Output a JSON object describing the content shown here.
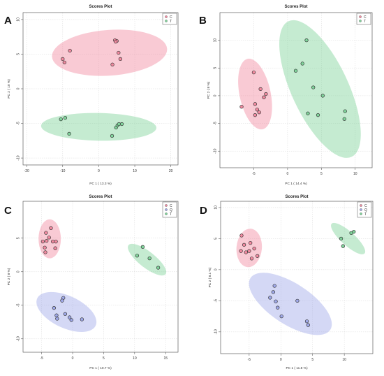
{
  "chart_data": [
    {
      "type": "scatter",
      "panel_label": "A",
      "title": "Scores Plot",
      "xlabel": "PC 1 ( 13.3 %)",
      "ylabel": "PC 2 ( 10 %)",
      "xlim": [
        -21,
        22
      ],
      "ylim": [
        -11,
        11
      ],
      "xticks": [
        -20,
        -10,
        0,
        10,
        20
      ],
      "yticks": [
        -10,
        -5,
        0,
        5,
        10
      ],
      "grid": true,
      "legend_position": "top-right",
      "series": [
        {
          "name": "C",
          "color": "#f28aa0",
          "x": [
            -8,
            -10,
            -9.5,
            4.5,
            5,
            4.7,
            5.5,
            6,
            3.8
          ],
          "y": [
            5.5,
            4.3,
            3.8,
            7,
            6.9,
            6.8,
            5.2,
            4.3,
            3.5
          ],
          "ellipse": {
            "cx": 3,
            "cy": 5.2,
            "rx": 16,
            "ry": 3.3,
            "angle": 4
          }
        },
        {
          "name": "T",
          "color": "#7fd39a",
          "x": [
            -10.5,
            -9.3,
            -8.2,
            4.8,
            5.2,
            5.6,
            6.4,
            3.7
          ],
          "y": [
            -4.4,
            -4.2,
            -6.5,
            -5.6,
            -5.3,
            -5.1,
            -5.1,
            -6.8
          ],
          "ellipse": {
            "cx": 0,
            "cy": -5.5,
            "rx": 16,
            "ry": 2,
            "angle": -1
          }
        }
      ]
    },
    {
      "type": "scatter",
      "panel_label": "B",
      "title": "Scores Plot",
      "xlabel": "PC 1 ( 14.4 %)",
      "ylabel": "PC 2 ( 8 %)",
      "xlim": [
        -10,
        12.5
      ],
      "ylim": [
        -13,
        15
      ],
      "xticks": [
        -5,
        0,
        5,
        10
      ],
      "yticks": [
        -10,
        -5,
        0,
        5,
        10
      ],
      "grid": true,
      "legend_position": "top-right",
      "series": [
        {
          "name": "C",
          "color": "#f28aa0",
          "x": [
            -5,
            -4,
            -3.2,
            -3.5,
            -4.8,
            -4.5,
            -6.8,
            -4.8,
            -4.2
          ],
          "y": [
            4.2,
            1.2,
            0.3,
            -0.3,
            -1.5,
            -2.5,
            -2,
            -3.5,
            -3
          ],
          "ellipse": {
            "cx": -4.8,
            "cy": 0.3,
            "rx": 2.3,
            "ry": 6.5,
            "angle": 12
          }
        },
        {
          "name": "T",
          "color": "#7fd39a",
          "x": [
            2.8,
            2.2,
            1.2,
            3.8,
            5.2,
            3,
            4.5,
            8.5,
            8.4
          ],
          "y": [
            10,
            5.8,
            4.5,
            1.5,
            0,
            -3.2,
            -3.5,
            -2.8,
            -4.2
          ],
          "ellipse": {
            "cx": 4.8,
            "cy": 1.2,
            "rx": 4.2,
            "ry": 13.5,
            "angle": 25
          }
        }
      ]
    },
    {
      "type": "scatter",
      "panel_label": "C",
      "title": "Scores Plot",
      "xlabel": "PC 1 ( 10.7 %)",
      "ylabel": "PC 2 ( 8 %)",
      "xlim": [
        -8,
        17
      ],
      "ylim": [
        -12,
        10.5
      ],
      "xticks": [
        -5,
        0,
        5,
        10,
        15
      ],
      "yticks": [
        -10,
        -5,
        0,
        5
      ],
      "grid": true,
      "legend_position": "top-right",
      "series": [
        {
          "name": "C",
          "color": "#f28aa0",
          "x": [
            -3.5,
            -4.3,
            -3.8,
            -4.2,
            -4.8,
            -3.2,
            -2.7,
            -4.5,
            -4.4,
            -2.8
          ],
          "y": [
            6.5,
            5.8,
            5.1,
            4.6,
            4.5,
            4.5,
            4.5,
            3.6,
            2.9,
            3.5
          ],
          "ellipse": {
            "cx": -3.7,
            "cy": 4.9,
            "rx": 1.8,
            "ry": 2.9,
            "angle": 0
          }
        },
        {
          "name": "Q",
          "color": "#9fa8e8",
          "x": [
            -1.5,
            -1.7,
            -3,
            -1.2,
            -0.5,
            -0.2,
            1.5,
            -2.6,
            -2.5
          ],
          "y": [
            -3.9,
            -4.3,
            -5.4,
            -6.3,
            -6.8,
            -7.2,
            -7.1,
            -6.5,
            -7
          ],
          "ellipse": {
            "cx": -1,
            "cy": -6,
            "rx": 5.2,
            "ry": 2.4,
            "angle": -25
          }
        },
        {
          "name": "T",
          "color": "#7fd39a",
          "x": [
            11.3,
            10.4,
            12.4,
            13.8
          ],
          "y": [
            3.7,
            2.4,
            2,
            0.6
          ],
          "ellipse": {
            "cx": 12,
            "cy": 1.8,
            "rx": 3.8,
            "ry": 1.2,
            "angle": -38
          }
        }
      ]
    },
    {
      "type": "scatter",
      "panel_label": "D",
      "title": "Scores Plot",
      "xlabel": "PC 1 ( 11.8 %)",
      "ylabel": "PC 2 ( 8.1 %)",
      "xlim": [
        -9.5,
        14.5
      ],
      "ylim": [
        -13.5,
        11
      ],
      "xticks": [
        -5,
        0,
        5,
        10
      ],
      "yticks": [
        -10,
        -5,
        0,
        5,
        10
      ],
      "grid": true,
      "legend_position": "top-right",
      "series": [
        {
          "name": "C",
          "color": "#f28aa0",
          "x": [
            -6.2,
            -5.8,
            -4.8,
            -4.2,
            -5,
            -5.5,
            -6.3,
            -3.7,
            -4.6
          ],
          "y": [
            5.5,
            4,
            4.3,
            3.4,
            3,
            2.8,
            3,
            2.2,
            1.8
          ],
          "ellipse": {
            "cx": -5,
            "cy": 3.5,
            "rx": 2,
            "ry": 3.1,
            "angle": -5
          }
        },
        {
          "name": "Q",
          "color": "#9fa8e8",
          "x": [
            -1,
            -1.2,
            -1.7,
            -0.8,
            -0.5,
            0.1,
            2.6,
            4.1,
            4.3
          ],
          "y": [
            -2.6,
            -3.6,
            -4.5,
            -5.1,
            -6.1,
            -7.5,
            -5,
            -8.3,
            -8.9
          ],
          "ellipse": {
            "cx": 1.5,
            "cy": -5.5,
            "rx": 7.5,
            "ry": 3.3,
            "angle": -33
          }
        },
        {
          "name": "T",
          "color": "#7fd39a",
          "x": [
            11.1,
            11.5,
            9.5,
            9.8
          ],
          "y": [
            5.9,
            6.1,
            5,
            3.8
          ],
          "ellipse": {
            "cx": 10.6,
            "cy": 5,
            "rx": 3.5,
            "ry": 1.1,
            "angle": -42
          }
        }
      ]
    }
  ]
}
